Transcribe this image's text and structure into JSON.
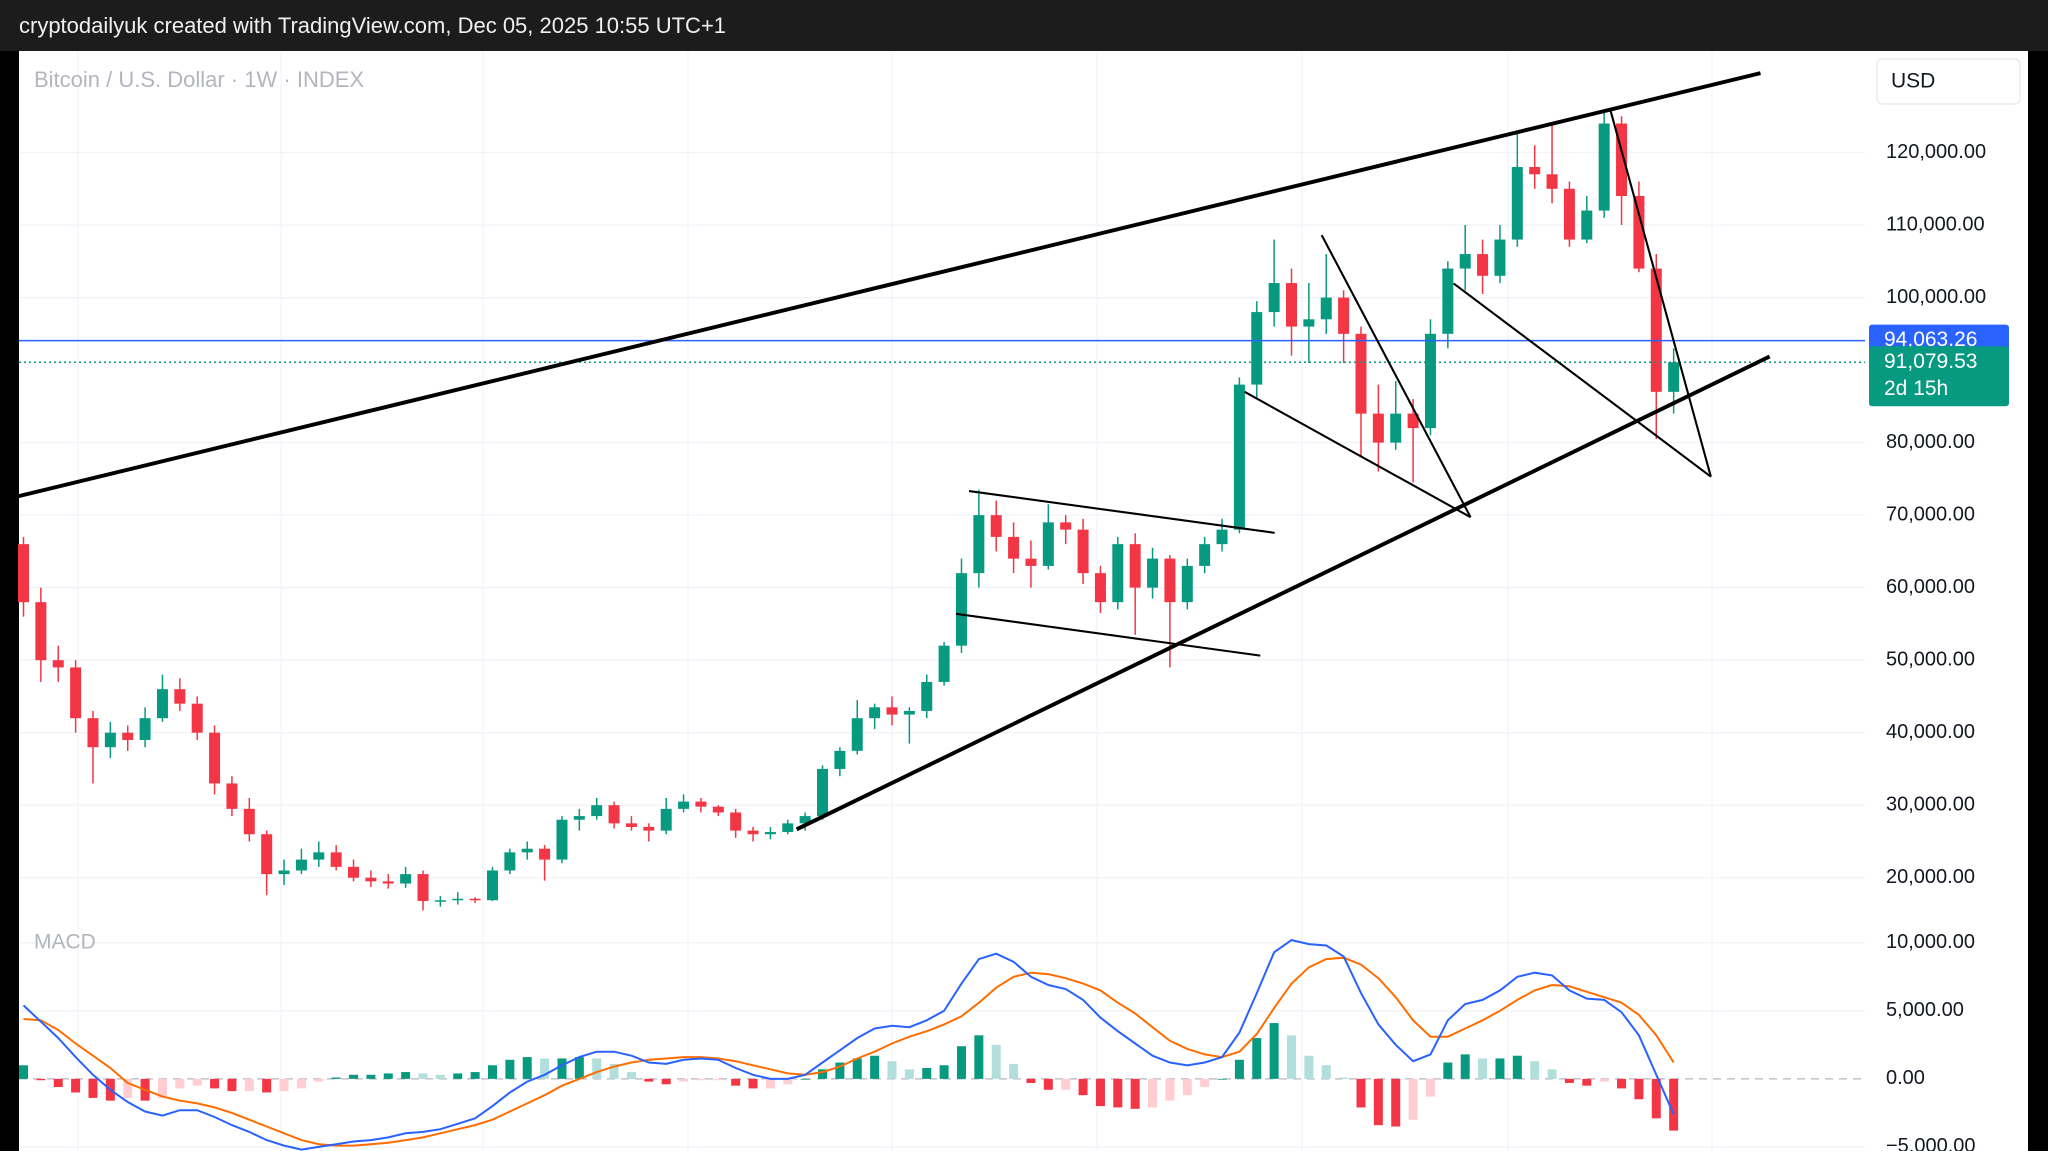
{
  "header": "cryptodailyuk created with TradingView.com, Dec 05, 2025 10:55 UTC+1",
  "chart_data": [
    {
      "type": "candlestick",
      "title": "Bitcoin / U.S. Dollar · 1W · INDEX",
      "currency": "USD",
      "up_color": "#089981",
      "down_color": "#f23645",
      "candles": [
        [
          66000,
          67000,
          56000,
          58000
        ],
        [
          58000,
          60000,
          47000,
          50000
        ],
        [
          50000,
          52000,
          47000,
          49000
        ],
        [
          49000,
          50000,
          40000,
          42000
        ],
        [
          42000,
          43000,
          33000,
          38000
        ],
        [
          38000,
          41500,
          36500,
          40000
        ],
        [
          40000,
          41000,
          37500,
          39000
        ],
        [
          39000,
          43500,
          38000,
          42000
        ],
        [
          42000,
          48000,
          41500,
          46000
        ],
        [
          46000,
          47500,
          43000,
          44000
        ],
        [
          44000,
          45000,
          39000,
          40000
        ],
        [
          40000,
          41000,
          31500,
          33000
        ],
        [
          33000,
          34000,
          28500,
          29500
        ],
        [
          29500,
          31000,
          25000,
          26000
        ],
        [
          26000,
          26500,
          17600,
          20500
        ],
        [
          20500,
          22500,
          19000,
          21000
        ],
        [
          21000,
          24000,
          20500,
          22500
        ],
        [
          22500,
          25000,
          21500,
          23500
        ],
        [
          23500,
          24500,
          21000,
          21500
        ],
        [
          21500,
          22500,
          19500,
          20000
        ],
        [
          20000,
          21000,
          18700,
          19500
        ],
        [
          19500,
          20500,
          18500,
          19200
        ],
        [
          19200,
          21500,
          18600,
          20500
        ],
        [
          20500,
          21000,
          15500,
          16800
        ],
        [
          16800,
          17500,
          16000,
          16900
        ],
        [
          16900,
          18000,
          16300,
          17100
        ],
        [
          17100,
          17300,
          16500,
          16900
        ],
        [
          16900,
          21500,
          16800,
          21000
        ],
        [
          21000,
          24000,
          20500,
          23500
        ],
        [
          23500,
          25000,
          22500,
          24000
        ],
        [
          24000,
          24500,
          19600,
          22500
        ],
        [
          22500,
          28500,
          22000,
          28000
        ],
        [
          28000,
          29500,
          26500,
          28500
        ],
        [
          28500,
          31000,
          28000,
          30000
        ],
        [
          30000,
          30500,
          26800,
          27500
        ],
        [
          27500,
          28500,
          26500,
          27000
        ],
        [
          27000,
          27500,
          25000,
          26500
        ],
        [
          26500,
          31000,
          26000,
          29500
        ],
        [
          29500,
          31500,
          29000,
          30500
        ],
        [
          30500,
          31000,
          29000,
          29800
        ],
        [
          29800,
          30000,
          28500,
          29000
        ],
        [
          29000,
          29500,
          25500,
          26500
        ],
        [
          26500,
          27000,
          25000,
          26000
        ],
        [
          26000,
          27000,
          25300,
          26300
        ],
        [
          26300,
          28000,
          26000,
          27500
        ],
        [
          27500,
          29000,
          26500,
          28500
        ],
        [
          28500,
          35500,
          28000,
          35000
        ],
        [
          35000,
          38000,
          34000,
          37500
        ],
        [
          37500,
          44500,
          37000,
          42000
        ],
        [
          42000,
          44000,
          40500,
          43500
        ],
        [
          43500,
          45000,
          41000,
          42500
        ],
        [
          42500,
          43500,
          38500,
          43000
        ],
        [
          43000,
          48000,
          42000,
          47000
        ],
        [
          47000,
          52500,
          46500,
          52000
        ],
        [
          52000,
          64000,
          51000,
          62000
        ],
        [
          62000,
          73500,
          60000,
          70000
        ],
        [
          70000,
          72000,
          65000,
          67000
        ],
        [
          67000,
          69000,
          62000,
          64000
        ],
        [
          64000,
          66500,
          60000,
          63000
        ],
        [
          63000,
          71500,
          62500,
          69000
        ],
        [
          69000,
          70000,
          66000,
          68000
        ],
        [
          68000,
          69500,
          60500,
          62000
        ],
        [
          62000,
          63000,
          56500,
          58000
        ],
        [
          58000,
          67000,
          57000,
          66000
        ],
        [
          66000,
          67500,
          53500,
          60000
        ],
        [
          60000,
          65500,
          58500,
          64000
        ],
        [
          64000,
          64500,
          49000,
          58000
        ],
        [
          58000,
          64000,
          57000,
          63000
        ],
        [
          63000,
          67000,
          62000,
          66000
        ],
        [
          66000,
          69500,
          65000,
          68000
        ],
        [
          68000,
          89000,
          67500,
          88000
        ],
        [
          88000,
          99500,
          86000,
          98000
        ],
        [
          98000,
          108000,
          96000,
          102000
        ],
        [
          102000,
          104000,
          92000,
          96000
        ],
        [
          96000,
          102000,
          91000,
          97000
        ],
        [
          97000,
          106000,
          95000,
          100000
        ],
        [
          100000,
          101000,
          91000,
          95000
        ],
        [
          95000,
          96000,
          78000,
          84000
        ],
        [
          84000,
          88000,
          76000,
          80000
        ],
        [
          80000,
          88500,
          79000,
          84000
        ],
        [
          84000,
          86000,
          74500,
          82000
        ],
        [
          82000,
          97000,
          81000,
          95000
        ],
        [
          95000,
          105000,
          93000,
          104000
        ],
        [
          104000,
          110000,
          101000,
          106000
        ],
        [
          106000,
          108000,
          100500,
          103000
        ],
        [
          103000,
          110000,
          102000,
          108000
        ],
        [
          108000,
          123000,
          107000,
          118000
        ],
        [
          118000,
          121000,
          115000,
          117000
        ],
        [
          117000,
          124000,
          113000,
          115000
        ],
        [
          115000,
          116000,
          107000,
          108000
        ],
        [
          108000,
          114000,
          107500,
          112000
        ],
        [
          112000,
          126000,
          111000,
          124000
        ],
        [
          124000,
          125000,
          110000,
          114000
        ],
        [
          114000,
          116000,
          103500,
          104000
        ],
        [
          104000,
          106000,
          80500,
          87000
        ],
        [
          87000,
          93000,
          84000,
          91079.53
        ]
      ],
      "ylim": [
        15000,
        134000
      ],
      "yticks": [
        {
          "value": 20000,
          "label": "20,000.00"
        },
        {
          "value": 30000,
          "label": "30,000.00"
        },
        {
          "value": 40000,
          "label": "40,000.00"
        },
        {
          "value": 50000,
          "label": "50,000.00"
        },
        {
          "value": 60000,
          "label": "60,000.00"
        },
        {
          "value": 70000,
          "label": "70,000.00"
        },
        {
          "value": 80000,
          "label": "80,000.00"
        },
        {
          "value": 100000,
          "label": "100,000.00"
        },
        {
          "value": 110000,
          "label": "110,000.00"
        },
        {
          "value": 120000,
          "label": "120,000.00"
        }
      ],
      "grid": true,
      "reference_line": {
        "value": 94063.26,
        "label": "94,063.26",
        "color": "#2962ff"
      },
      "last_price": {
        "value": 91079.53,
        "label": "91,079.53",
        "color": "#089981"
      },
      "countdown": "2d 15h"
    },
    {
      "type": "macd",
      "title": "MACD",
      "macd": {
        "color": "#2962ff",
        "values": [
          5400,
          4200,
          3000,
          1600,
          300,
          -800,
          -1700,
          -2400,
          -2700,
          -2300,
          -2300,
          -2800,
          -3400,
          -3900,
          -4500,
          -4900,
          -5200,
          -5000,
          -4800,
          -4600,
          -4500,
          -4300,
          -4000,
          -3900,
          -3700,
          -3300,
          -2900,
          -2000,
          -1000,
          -200,
          300,
          1000,
          1600,
          2000,
          2000,
          1700,
          1200,
          1100,
          1400,
          1500,
          1400,
          800,
          300,
          0,
          0,
          300,
          1200,
          2100,
          3000,
          3700,
          3900,
          3800,
          4300,
          5000,
          7000,
          8800,
          9200,
          8600,
          7500,
          6900,
          6600,
          5800,
          4500,
          3500,
          2600,
          1700,
          1200,
          1000,
          1200,
          1600,
          3400,
          6300,
          9300,
          10200,
          9900,
          9800,
          9000,
          6300,
          4000,
          2500,
          1300,
          1800,
          4300,
          5500,
          5800,
          6500,
          7500,
          7800,
          7600,
          6500,
          5900,
          5800,
          4900,
          3200,
          300,
          -2600
        ]
      },
      "signal": {
        "color": "#ff6d00",
        "values": [
          4400,
          4300,
          3600,
          2600,
          1700,
          800,
          -300,
          -800,
          -1300,
          -1600,
          -1800,
          -2100,
          -2500,
          -3000,
          -3500,
          -4000,
          -4500,
          -4800,
          -4900,
          -4900,
          -4800,
          -4700,
          -4500,
          -4300,
          -4000,
          -3700,
          -3400,
          -3000,
          -2400,
          -1800,
          -1200,
          -500,
          0,
          500,
          900,
          1200,
          1400,
          1500,
          1600,
          1600,
          1500,
          1300,
          1000,
          700,
          400,
          300,
          500,
          900,
          1500,
          2000,
          2600,
          3100,
          3500,
          4000,
          4600,
          5600,
          6700,
          7500,
          7800,
          7700,
          7400,
          7000,
          6500,
          5600,
          4800,
          3800,
          2800,
          2200,
          1800,
          1600,
          2000,
          3300,
          5200,
          7000,
          8200,
          8800,
          8900,
          8400,
          7400,
          6000,
          4300,
          3100,
          3100,
          3700,
          4300,
          5000,
          5800,
          6500,
          6900,
          6800,
          6400,
          6000,
          5600,
          4700,
          3200,
          1200
        ]
      },
      "histogram": [
        1000,
        -100,
        -600,
        -1000,
        -1400,
        -1600,
        -1400,
        -1600,
        -1400,
        -700,
        -500,
        -700,
        -900,
        -900,
        -1000,
        -900,
        -700,
        -200,
        100,
        300,
        300,
        400,
        500,
        400,
        300,
        400,
        500,
        1000,
        1400,
        1600,
        1500,
        1500,
        1600,
        1500,
        1100,
        500,
        -200,
        -400,
        -200,
        -100,
        -100,
        -500,
        -700,
        -700,
        -400,
        0,
        700,
        1200,
        1500,
        1700,
        1300,
        700,
        800,
        1000,
        2400,
        3200,
        2500,
        1100,
        -300,
        -800,
        -800,
        -1200,
        -2000,
        -2100,
        -2200,
        -2100,
        -1600,
        -1200,
        -600,
        0,
        1400,
        3000,
        4100,
        3200,
        1700,
        1000,
        100,
        -2100,
        -3400,
        -3500,
        -3000,
        -1300,
        1200,
        1800,
        1500,
        1500,
        1700,
        1300,
        700,
        -300,
        -500,
        -200,
        -700,
        -1500,
        -2900,
        -3800
      ],
      "histogram_colors": [
        "#089981",
        "#b2dfdb",
        "#ffcdd2",
        "#f23645"
      ],
      "ylim": [
        -5300,
        11600
      ],
      "yticks": [
        {
          "value": -5000,
          "label": "−5,000.00"
        },
        {
          "value": 0,
          "label": "0.00"
        },
        {
          "value": 5000,
          "label": "5,000.00"
        },
        {
          "value": 10000,
          "label": "10,000.00"
        }
      ]
    }
  ]
}
